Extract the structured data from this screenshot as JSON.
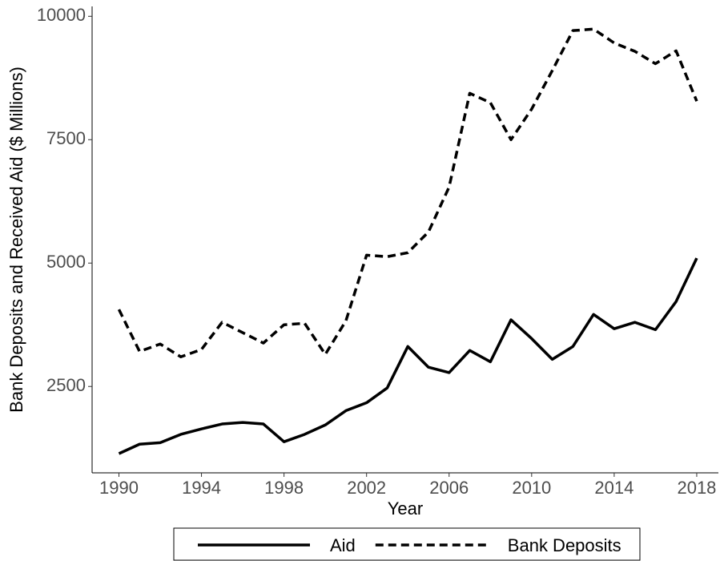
{
  "chart_data": {
    "type": "line",
    "x_label": "Year",
    "y_label": "Bank Deposits and Received Aid ($ Millions)",
    "x": [
      1990,
      1991,
      1992,
      1993,
      1994,
      1995,
      1996,
      1997,
      1998,
      1999,
      2000,
      2001,
      2002,
      2003,
      2004,
      2005,
      2006,
      2007,
      2008,
      2009,
      2010,
      2011,
      2012,
      2013,
      2014,
      2015,
      2016,
      2017,
      2018
    ],
    "series": [
      {
        "name": "Aid",
        "color": "#000000",
        "dash": "solid",
        "values": [
          1140,
          1330,
          1360,
          1530,
          1640,
          1740,
          1770,
          1740,
          1380,
          1530,
          1720,
          2010,
          2170,
          2470,
          3310,
          2890,
          2780,
          3230,
          3000,
          3850,
          3470,
          3050,
          3310,
          3960,
          3670,
          3800,
          3650,
          4220,
          5100
        ]
      },
      {
        "name": "Bank Deposits",
        "color": "#000000",
        "dash": "dashed",
        "values": [
          4060,
          3210,
          3360,
          3100,
          3250,
          3800,
          3590,
          3380,
          3750,
          3780,
          3150,
          3830,
          5160,
          5130,
          5210,
          5630,
          6540,
          8440,
          8250,
          7500,
          8120,
          8900,
          9710,
          9740,
          9460,
          9290,
          9040,
          9300,
          8280
        ]
      }
    ],
    "xlim": [
      1988.7,
      2019.05
    ],
    "ylim": [
      750,
      10200
    ],
    "xticks": [
      1990,
      1994,
      1998,
      2002,
      2006,
      2010,
      2014,
      2018
    ],
    "yticks": [
      2500,
      5000,
      7500,
      10000
    ],
    "grid": false,
    "legend": "bottom"
  }
}
